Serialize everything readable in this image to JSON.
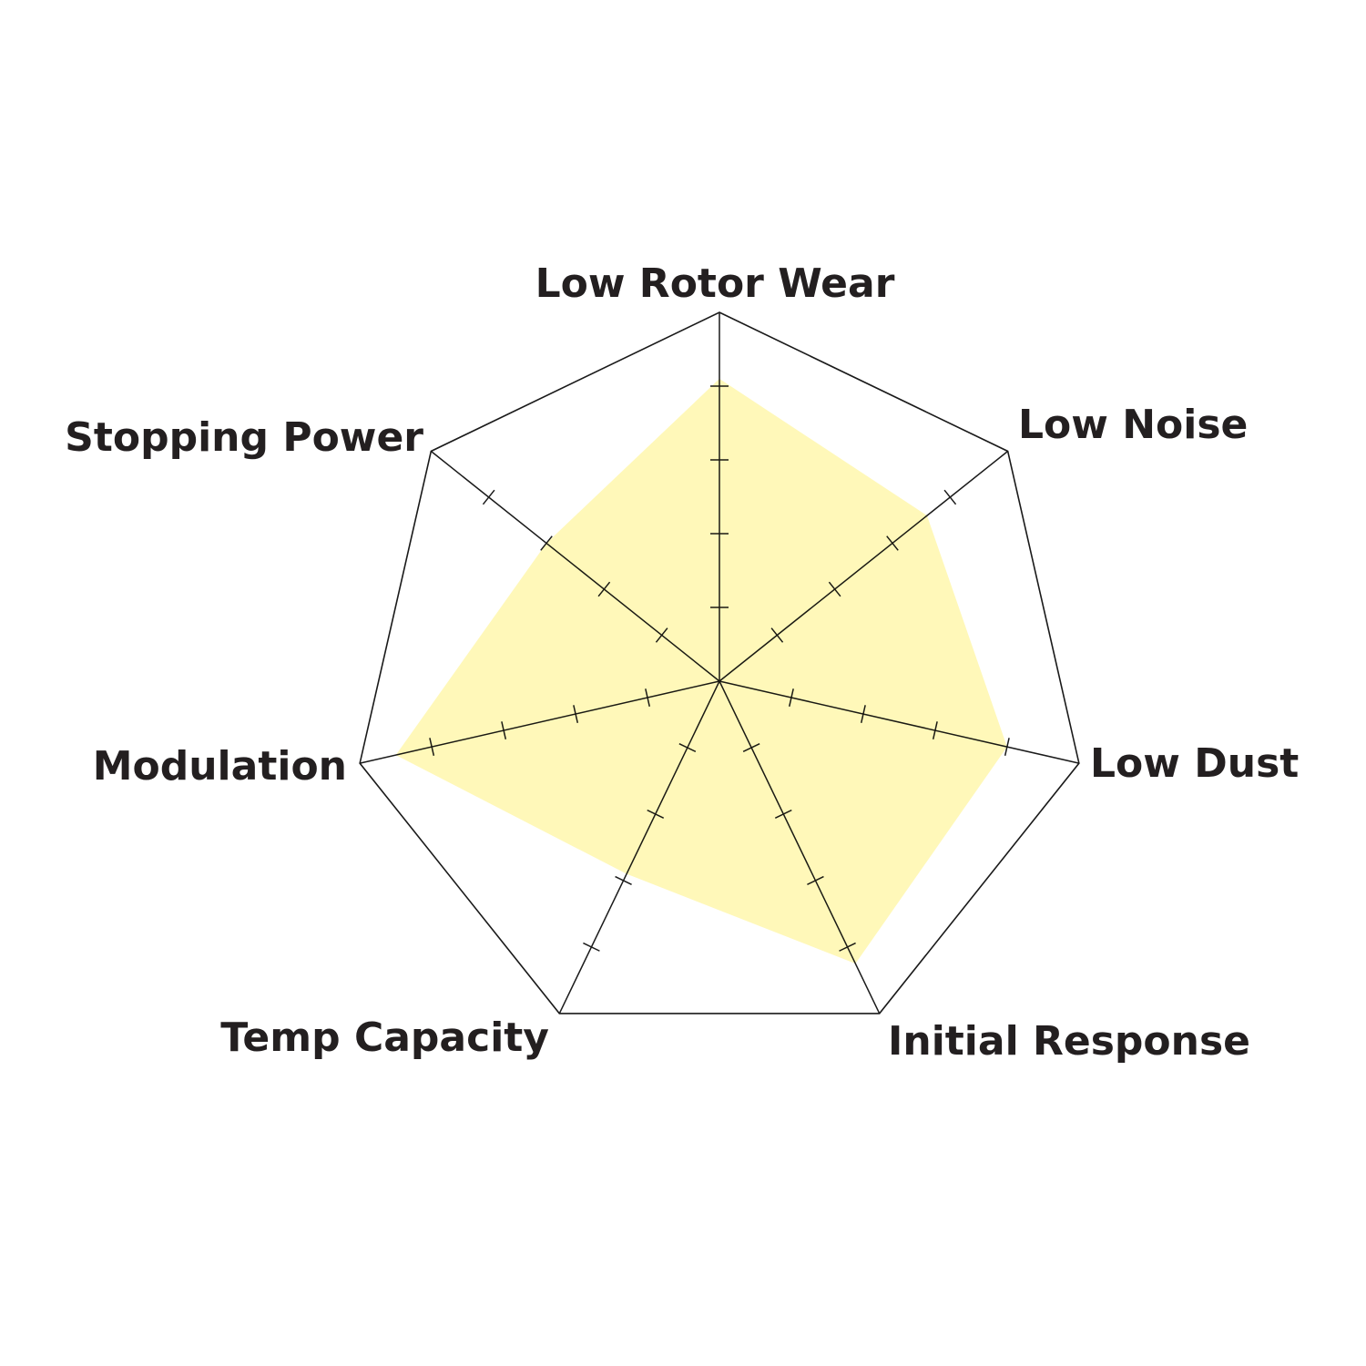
{
  "chart_data": {
    "type": "radar",
    "title": "",
    "axes": [
      "Low Rotor Wear",
      "Low Noise",
      "Low Dust",
      "Initial Response",
      "Temp Capacity",
      "Modulation",
      "Stopping Power"
    ],
    "values": [
      4.1,
      3.6,
      4.0,
      4.25,
      2.9,
      4.5,
      3.0
    ],
    "range": [
      0,
      5
    ],
    "ticks": [
      1,
      2,
      3,
      4
    ],
    "grid": "outer polygon only",
    "legend": "none",
    "colors": {
      "fill": "#fff7ad",
      "axis": "#6b6320",
      "outline": "#1a1a1a",
      "text": "#231f20"
    }
  }
}
